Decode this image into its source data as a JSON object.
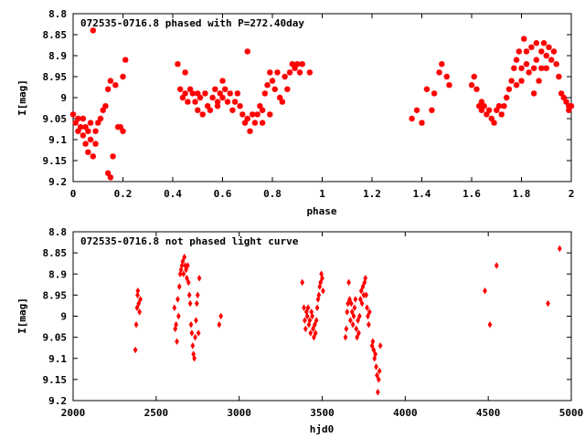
{
  "chart_data": [
    {
      "type": "scatter",
      "title": "072535-0716.8 phased with P=272.40day",
      "xlabel": "phase",
      "ylabel": "I[mag]",
      "xlim": [
        0,
        2
      ],
      "ylim": [
        8.8,
        9.2
      ],
      "y_inverted": true,
      "grid": false,
      "marker": "star",
      "xticks": [
        "0",
        "0.2",
        "0.4",
        "0.6",
        "0.8",
        "1",
        "1.2",
        "1.4",
        "1.6",
        "1.8",
        "2"
      ],
      "yticks": [
        "8.8",
        "8.85",
        "8.9",
        "8.95",
        "9",
        "9.05",
        "9.1",
        "9.15",
        "9.2"
      ],
      "series": [
        {
          "color": "#ff0000",
          "points": [
            [
              0.0,
              9.04
            ],
            [
              0.01,
              9.06
            ],
            [
              0.02,
              9.08
            ],
            [
              0.02,
              9.05
            ],
            [
              0.03,
              9.07
            ],
            [
              0.04,
              9.05
            ],
            [
              0.04,
              9.09
            ],
            [
              0.05,
              9.07
            ],
            [
              0.05,
              9.11
            ],
            [
              0.06,
              9.08
            ],
            [
              0.06,
              9.13
            ],
            [
              0.07,
              9.06
            ],
            [
              0.07,
              9.1
            ],
            [
              0.08,
              9.14
            ],
            [
              0.08,
              8.84
            ],
            [
              0.09,
              9.08
            ],
            [
              0.09,
              9.11
            ],
            [
              0.1,
              9.06
            ],
            [
              0.11,
              9.05
            ],
            [
              0.12,
              9.03
            ],
            [
              0.13,
              9.02
            ],
            [
              0.14,
              8.98
            ],
            [
              0.14,
              9.18
            ],
            [
              0.15,
              9.19
            ],
            [
              0.15,
              8.96
            ],
            [
              0.16,
              9.14
            ],
            [
              0.17,
              8.97
            ],
            [
              0.18,
              9.07
            ],
            [
              0.19,
              9.07
            ],
            [
              0.2,
              9.08
            ],
            [
              0.2,
              8.95
            ],
            [
              0.21,
              8.91
            ],
            [
              0.42,
              8.92
            ],
            [
              0.43,
              8.98
            ],
            [
              0.44,
              9.0
            ],
            [
              0.45,
              8.94
            ],
            [
              0.45,
              8.99
            ],
            [
              0.46,
              9.01
            ],
            [
              0.47,
              8.98
            ],
            [
              0.48,
              8.99
            ],
            [
              0.49,
              9.01
            ],
            [
              0.5,
              9.03
            ],
            [
              0.5,
              8.99
            ],
            [
              0.51,
              9.0
            ],
            [
              0.52,
              9.04
            ],
            [
              0.53,
              8.99
            ],
            [
              0.54,
              9.02
            ],
            [
              0.55,
              9.03
            ],
            [
              0.56,
              9.0
            ],
            [
              0.57,
              8.98
            ],
            [
              0.58,
              9.01
            ],
            [
              0.58,
              9.02
            ],
            [
              0.59,
              8.99
            ],
            [
              0.6,
              9.0
            ],
            [
              0.6,
              8.96
            ],
            [
              0.61,
              8.98
            ],
            [
              0.62,
              9.01
            ],
            [
              0.63,
              8.99
            ],
            [
              0.64,
              9.03
            ],
            [
              0.65,
              9.01
            ],
            [
              0.66,
              8.99
            ],
            [
              0.67,
              9.02
            ],
            [
              0.68,
              9.04
            ],
            [
              0.69,
              9.06
            ],
            [
              0.7,
              9.05
            ],
            [
              0.7,
              8.89
            ],
            [
              0.71,
              9.08
            ],
            [
              0.72,
              9.04
            ],
            [
              0.73,
              9.06
            ],
            [
              0.74,
              9.04
            ],
            [
              0.75,
              9.02
            ],
            [
              0.76,
              9.03
            ],
            [
              0.76,
              9.06
            ],
            [
              0.77,
              8.99
            ],
            [
              0.78,
              8.97
            ],
            [
              0.79,
              8.94
            ],
            [
              0.79,
              9.04
            ],
            [
              0.8,
              8.96
            ],
            [
              0.81,
              8.98
            ],
            [
              0.82,
              8.94
            ],
            [
              0.83,
              9.0
            ],
            [
              0.84,
              9.01
            ],
            [
              0.85,
              8.95
            ],
            [
              0.86,
              8.98
            ],
            [
              0.87,
              8.94
            ],
            [
              0.88,
              8.92
            ],
            [
              0.89,
              8.93
            ],
            [
              0.9,
              8.92
            ],
            [
              0.91,
              8.94
            ],
            [
              0.92,
              8.92
            ],
            [
              0.95,
              8.94
            ],
            [
              1.36,
              9.05
            ],
            [
              1.38,
              9.03
            ],
            [
              1.4,
              9.06
            ],
            [
              1.42,
              8.98
            ],
            [
              1.44,
              9.03
            ],
            [
              1.45,
              8.99
            ],
            [
              1.47,
              8.94
            ],
            [
              1.48,
              8.92
            ],
            [
              1.5,
              8.95
            ],
            [
              1.51,
              8.97
            ],
            [
              1.6,
              8.97
            ],
            [
              1.61,
              8.95
            ],
            [
              1.62,
              8.98
            ],
            [
              1.63,
              9.02
            ],
            [
              1.64,
              9.01
            ],
            [
              1.64,
              9.03
            ],
            [
              1.65,
              9.02
            ],
            [
              1.66,
              9.04
            ],
            [
              1.67,
              9.03
            ],
            [
              1.68,
              9.05
            ],
            [
              1.69,
              9.06
            ],
            [
              1.7,
              9.03
            ],
            [
              1.71,
              9.02
            ],
            [
              1.72,
              9.04
            ],
            [
              1.73,
              9.02
            ],
            [
              1.74,
              9.0
            ],
            [
              1.75,
              8.98
            ],
            [
              1.76,
              8.96
            ],
            [
              1.77,
              8.93
            ],
            [
              1.78,
              8.91
            ],
            [
              1.78,
              8.97
            ],
            [
              1.79,
              8.89
            ],
            [
              1.8,
              8.93
            ],
            [
              1.8,
              8.96
            ],
            [
              1.81,
              8.86
            ],
            [
              1.82,
              8.89
            ],
            [
              1.82,
              8.92
            ],
            [
              1.83,
              8.94
            ],
            [
              1.84,
              8.88
            ],
            [
              1.85,
              8.93
            ],
            [
              1.85,
              8.99
            ],
            [
              1.86,
              8.87
            ],
            [
              1.86,
              8.91
            ],
            [
              1.87,
              8.96
            ],
            [
              1.88,
              8.89
            ],
            [
              1.88,
              8.93
            ],
            [
              1.89,
              8.87
            ],
            [
              1.9,
              8.9
            ],
            [
              1.9,
              8.93
            ],
            [
              1.91,
              8.88
            ],
            [
              1.92,
              8.91
            ],
            [
              1.93,
              8.89
            ],
            [
              1.94,
              8.92
            ],
            [
              1.95,
              8.95
            ],
            [
              1.96,
              8.99
            ],
            [
              1.97,
              9.0
            ],
            [
              1.98,
              9.01
            ],
            [
              1.99,
              9.02
            ],
            [
              1.99,
              9.03
            ],
            [
              2.0,
              9.02
            ]
          ]
        }
      ]
    },
    {
      "type": "scatter",
      "title": "072535-0716.8 not phased light curve",
      "xlabel": "hjd0",
      "ylabel": "I[mag]",
      "xlim": [
        2000,
        5000
      ],
      "ylim": [
        8.8,
        9.2
      ],
      "y_inverted": true,
      "grid": false,
      "marker": "diamond",
      "xticks": [
        "2000",
        "2500",
        "3000",
        "3500",
        "4000",
        "4500",
        "5000"
      ],
      "yticks": [
        "8.8",
        "8.85",
        "8.9",
        "8.95",
        "9",
        "9.05",
        "9.1",
        "9.15",
        "9.2"
      ],
      "series": [
        {
          "color": "#ff0000",
          "points": [
            [
              2375,
              9.08
            ],
            [
              2380,
              9.02
            ],
            [
              2385,
              8.98
            ],
            [
              2388,
              8.95
            ],
            [
              2390,
              8.94
            ],
            [
              2395,
              8.97
            ],
            [
              2400,
              8.99
            ],
            [
              2405,
              8.96
            ],
            [
              2610,
              8.98
            ],
            [
              2615,
              9.03
            ],
            [
              2620,
              9.02
            ],
            [
              2625,
              9.06
            ],
            [
              2630,
              8.96
            ],
            [
              2635,
              9.0
            ],
            [
              2640,
              8.93
            ],
            [
              2645,
              8.9
            ],
            [
              2650,
              8.89
            ],
            [
              2655,
              8.88
            ],
            [
              2660,
              8.87
            ],
            [
              2665,
              8.9
            ],
            [
              2670,
              8.86
            ],
            [
              2675,
              8.88
            ],
            [
              2680,
              8.89
            ],
            [
              2685,
              8.91
            ],
            [
              2690,
              8.88
            ],
            [
              2695,
              8.92
            ],
            [
              2700,
              8.95
            ],
            [
              2705,
              8.97
            ],
            [
              2710,
              9.02
            ],
            [
              2715,
              9.04
            ],
            [
              2720,
              9.07
            ],
            [
              2725,
              9.09
            ],
            [
              2730,
              9.1
            ],
            [
              2735,
              9.05
            ],
            [
              2740,
              9.01
            ],
            [
              2745,
              8.97
            ],
            [
              2750,
              8.95
            ],
            [
              2755,
              9.04
            ],
            [
              2760,
              8.91
            ],
            [
              2880,
              9.02
            ],
            [
              2890,
              9.0
            ],
            [
              3380,
              8.92
            ],
            [
              3390,
              8.98
            ],
            [
              3395,
              9.01
            ],
            [
              3400,
              9.03
            ],
            [
              3405,
              8.99
            ],
            [
              3410,
              9.0
            ],
            [
              3415,
              8.98
            ],
            [
              3420,
              9.02
            ],
            [
              3425,
              9.01
            ],
            [
              3430,
              9.04
            ],
            [
              3435,
              8.99
            ],
            [
              3440,
              9.0
            ],
            [
              3445,
              9.03
            ],
            [
              3450,
              9.05
            ],
            [
              3455,
              9.02
            ],
            [
              3460,
              9.04
            ],
            [
              3465,
              9.01
            ],
            [
              3470,
              8.98
            ],
            [
              3475,
              8.96
            ],
            [
              3480,
              8.95
            ],
            [
              3485,
              8.93
            ],
            [
              3490,
              8.92
            ],
            [
              3495,
              8.9
            ],
            [
              3500,
              8.91
            ],
            [
              3505,
              8.94
            ],
            [
              3640,
              9.05
            ],
            [
              3645,
              9.03
            ],
            [
              3650,
              8.99
            ],
            [
              3655,
              8.97
            ],
            [
              3660,
              8.92
            ],
            [
              3665,
              8.96
            ],
            [
              3670,
              9.01
            ],
            [
              3675,
              8.97
            ],
            [
              3680,
              8.99
            ],
            [
              3685,
              9.02
            ],
            [
              3690,
              9.0
            ],
            [
              3695,
              8.98
            ],
            [
              3700,
              8.96
            ],
            [
              3705,
              9.03
            ],
            [
              3710,
              9.05
            ],
            [
              3715,
              9.01
            ],
            [
              3720,
              9.04
            ],
            [
              3725,
              9.0
            ],
            [
              3730,
              8.96
            ],
            [
              3735,
              8.94
            ],
            [
              3740,
              8.97
            ],
            [
              3745,
              8.93
            ],
            [
              3750,
              8.95
            ],
            [
              3755,
              8.92
            ],
            [
              3760,
              8.91
            ],
            [
              3765,
              8.95
            ],
            [
              3770,
              8.98
            ],
            [
              3775,
              9.0
            ],
            [
              3780,
              9.02
            ],
            [
              3785,
              8.99
            ],
            [
              3800,
              9.07
            ],
            [
              3805,
              9.06
            ],
            [
              3810,
              9.08
            ],
            [
              3815,
              9.1
            ],
            [
              3820,
              9.09
            ],
            [
              3825,
              9.12
            ],
            [
              3830,
              9.14
            ],
            [
              3835,
              9.18
            ],
            [
              3840,
              9.15
            ],
            [
              3845,
              9.13
            ],
            [
              3850,
              9.07
            ],
            [
              4480,
              8.94
            ],
            [
              4510,
              9.02
            ],
            [
              4550,
              8.88
            ],
            [
              4860,
              8.97
            ],
            [
              4930,
              8.84
            ]
          ]
        }
      ]
    }
  ]
}
